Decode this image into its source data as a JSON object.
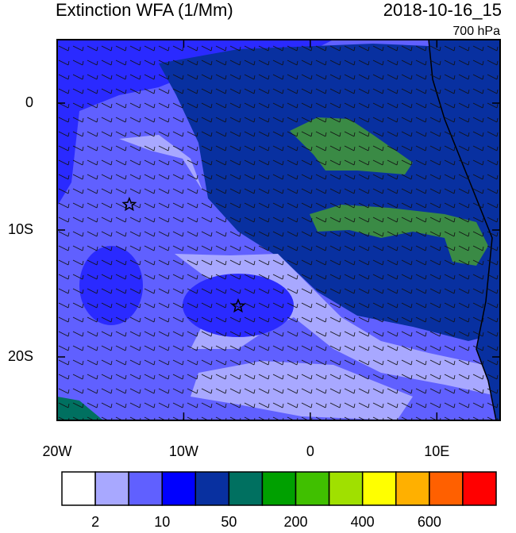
{
  "chart_data": {
    "type": "map",
    "title": "Extinction WFA (1/Mm)",
    "time": "2018-10-16_15",
    "level": "700 hPa",
    "xlim": [
      -20,
      15
    ],
    "ylim": [
      -25,
      5
    ],
    "xticks": [
      {
        "value": -20,
        "label": "20W"
      },
      {
        "value": -10,
        "label": "10W"
      },
      0,
      {
        "value": 10,
        "label": "10E"
      }
    ],
    "yticks": [
      0,
      {
        "value": -10,
        "label": "10S"
      },
      {
        "value": -20,
        "label": "20S"
      }
    ],
    "markers": [
      {
        "lon": -14.3,
        "lat": -8
      },
      {
        "lon": -5.7,
        "lat": -16
      }
    ],
    "colorbar": {
      "colors": [
        "#ffffff",
        "#a8a8ff",
        "#6060ff",
        "#0000ff",
        "#0830a0",
        "#007060",
        "#00a000",
        "#40c000",
        "#a0e000",
        "#ffff00",
        "#ffb000",
        "#ff6000",
        "#ff0000"
      ],
      "labels": [
        "2",
        "10",
        "50",
        "200",
        "400",
        "600"
      ]
    }
  }
}
